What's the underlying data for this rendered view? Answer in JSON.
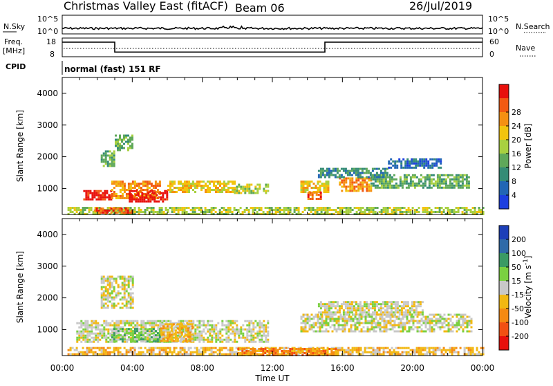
{
  "header": {
    "title": "Christmas Valley East (fitACF)",
    "beam": "Beam 06",
    "date": "26/Jul/2019"
  },
  "top_panels": {
    "nsky": {
      "label": "N.Sky",
      "ticks": [
        "10^5",
        "10^0"
      ],
      "right_label": "N.Search",
      "right_ticks": [
        "10^5",
        "10^0"
      ]
    },
    "freq": {
      "label_line1": "Freq.",
      "label_line2": "[MHz]",
      "ticks": [
        "18",
        "8"
      ],
      "right_label": "Nave",
      "right_ticks": [
        "60",
        "0"
      ],
      "steps": [
        {
          "start": 0.0,
          "end": 3.0,
          "level": 0.78
        },
        {
          "start": 3.0,
          "end": 15.0,
          "level": 0.25
        },
        {
          "start": 15.0,
          "end": 24.0,
          "level": 0.78
        }
      ]
    },
    "cpid": {
      "label": "CPID",
      "mode": "normal (fast) 151 RF"
    }
  },
  "time_axis": {
    "label": "Time UT",
    "ticks": [
      "00:00",
      "04:00",
      "08:00",
      "12:00",
      "16:00",
      "20:00",
      "00:00"
    ],
    "range_hours": [
      0,
      24
    ]
  },
  "chart_data": [
    {
      "type": "heatmap",
      "name": "power-panel",
      "ylabel": "Slant Range [km]",
      "yticks": [
        "1000",
        "2000",
        "3000",
        "4000"
      ],
      "ylim": [
        180,
        4500
      ],
      "colorbar": {
        "label": "Power [dB]",
        "ticks": [
          "4",
          "8",
          "12",
          "16",
          "20",
          "24",
          "28"
        ],
        "colors": [
          "#1c3fe0",
          "#2266b5",
          "#358c76",
          "#5fa85a",
          "#a8d040",
          "#f2c40e",
          "#f59012",
          "#f25a12",
          "#e8100c"
        ]
      },
      "regions": [
        {
          "t0": 1.2,
          "t1": 2.8,
          "r0": 650,
          "r1": 950,
          "level": 8
        },
        {
          "t0": 2.8,
          "t1": 5.6,
          "r0": 700,
          "r1": 1250,
          "level": 6
        },
        {
          "t0": 3.8,
          "t1": 6.0,
          "r0": 600,
          "r1": 950,
          "level": 8
        },
        {
          "t0": 6.0,
          "t1": 9.8,
          "r0": 900,
          "r1": 1250,
          "level": 5
        },
        {
          "t0": 9.8,
          "t1": 11.8,
          "r0": 850,
          "r1": 1150,
          "level": 4
        },
        {
          "t0": 13.6,
          "t1": 15.2,
          "r0": 900,
          "r1": 1250,
          "level": 5
        },
        {
          "t0": 14.0,
          "t1": 14.8,
          "r0": 650,
          "r1": 900,
          "level": 7
        },
        {
          "t0": 15.8,
          "t1": 17.6,
          "r0": 950,
          "r1": 1350,
          "level": 6
        },
        {
          "t0": 17.6,
          "t1": 23.2,
          "r0": 1050,
          "r1": 1450,
          "level": 3
        },
        {
          "t0": 14.6,
          "t1": 18.6,
          "r0": 1350,
          "r1": 1650,
          "level": 2
        },
        {
          "t0": 18.6,
          "t1": 21.6,
          "r0": 1650,
          "r1": 1950,
          "level": 1
        },
        {
          "t0": 2.2,
          "t1": 3.0,
          "r0": 1700,
          "r1": 2200,
          "level": 3
        },
        {
          "t0": 3.0,
          "t1": 4.0,
          "r0": 2200,
          "r1": 2700,
          "level": 3
        },
        {
          "t0": 0.3,
          "t1": 24.0,
          "r0": 200,
          "r1": 420,
          "level": 4
        },
        {
          "t0": 1.8,
          "t1": 4.0,
          "r0": 250,
          "r1": 400,
          "level": 7
        }
      ]
    },
    {
      "type": "heatmap",
      "name": "velocity-panel",
      "ylabel": "Slant Range [km]",
      "yticks": [
        "1000",
        "2000",
        "3000",
        "4000"
      ],
      "ylim": [
        180,
        4500
      ],
      "colorbar": {
        "label": "Velocity [m s^-1]",
        "ticks": [
          "200",
          "100",
          "50",
          "15",
          "-15",
          "-50",
          "-100",
          "-200"
        ],
        "colors": [
          "#1c3fb8",
          "#2f6aa8",
          "#3a9a64",
          "#7ad040",
          "#c8c8c8",
          "#f2b812",
          "#f58a12",
          "#f25012",
          "#e8100c"
        ]
      },
      "regions": [
        {
          "t0": 0.8,
          "t1": 11.8,
          "r0": 600,
          "r1": 1300,
          "level": 4
        },
        {
          "t0": 2.8,
          "t1": 5.6,
          "r0": 650,
          "r1": 1050,
          "level": 3
        },
        {
          "t0": 5.6,
          "t1": 7.4,
          "r0": 650,
          "r1": 1200,
          "level": 5
        },
        {
          "t0": 13.6,
          "t1": 23.4,
          "r0": 950,
          "r1": 1500,
          "level": 4
        },
        {
          "t0": 14.6,
          "t1": 20.6,
          "r0": 1500,
          "r1": 1900,
          "level": 4
        },
        {
          "t0": 2.2,
          "t1": 4.0,
          "r0": 1700,
          "r1": 2700,
          "level": 4
        },
        {
          "t0": 0.3,
          "t1": 24.0,
          "r0": 200,
          "r1": 450,
          "level": 5
        },
        {
          "t0": 10.0,
          "t1": 15.8,
          "r0": 220,
          "r1": 420,
          "level": 6
        }
      ]
    }
  ]
}
